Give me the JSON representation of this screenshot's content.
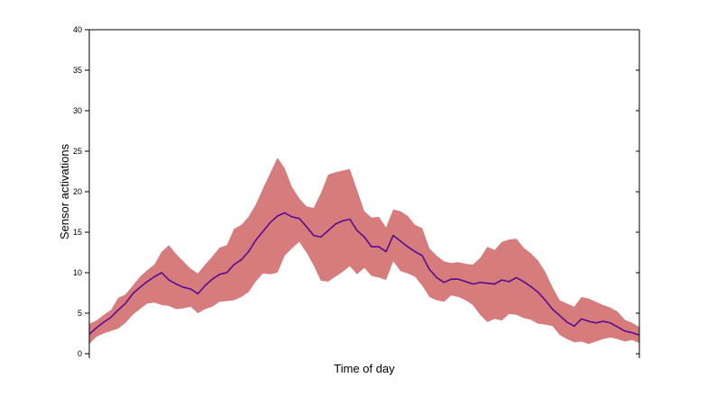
{
  "chart_data": {
    "type": "area",
    "xlabel": "Time of day",
    "ylabel": "Sensor activations",
    "ylim": [
      0,
      40
    ],
    "yticks": [
      0,
      5,
      10,
      15,
      20,
      25,
      30,
      35,
      40
    ],
    "ytick_labels": [
      "0",
      "5",
      "10",
      "15",
      "20",
      "25",
      "30",
      "35",
      "40"
    ],
    "grid": false,
    "colors": {
      "band": "#d67c7c",
      "line": "#5a0a8c",
      "axis": "#000000"
    },
    "series": [
      {
        "mean": [
          2.4,
          3.2,
          3.9,
          4.5,
          5.4,
          6.2,
          7.4,
          8.2,
          8.9,
          9.5,
          10.0,
          9.1,
          8.6,
          8.2,
          8.0,
          7.4,
          8.4,
          9.2,
          9.8,
          10.0,
          11.0,
          11.6,
          12.6,
          14.0,
          15.1,
          16.2,
          17.0,
          17.4,
          16.9,
          16.7,
          15.7,
          14.6,
          14.4,
          15.2,
          16.0,
          16.4,
          16.6,
          15.2,
          14.4,
          13.2,
          13.2,
          12.6,
          14.6,
          13.9,
          13.2,
          12.6,
          12.1,
          10.4,
          9.4,
          8.8,
          9.2,
          9.2,
          8.9,
          8.6,
          8.8,
          8.7,
          8.6,
          9.1,
          8.9,
          9.4,
          8.9,
          8.3,
          7.6,
          6.6,
          5.5,
          4.7,
          3.9,
          3.4,
          4.3,
          4.0,
          3.8,
          4.0,
          3.8,
          3.3,
          2.8,
          2.6,
          2.3
        ],
        "upper": [
          3.7,
          4.1,
          4.8,
          5.4,
          6.9,
          7.3,
          8.4,
          9.5,
          10.3,
          11.0,
          12.6,
          13.4,
          12.3,
          11.4,
          10.5,
          9.9,
          11.0,
          12.0,
          13.1,
          13.4,
          15.4,
          15.9,
          16.9,
          18.4,
          20.4,
          22.3,
          24.2,
          22.9,
          20.6,
          19.2,
          18.2,
          18.0,
          19.8,
          22.1,
          22.4,
          22.6,
          22.8,
          20.2,
          17.6,
          16.8,
          16.9,
          15.6,
          17.8,
          17.6,
          17.0,
          15.9,
          15.5,
          13.0,
          12.1,
          11.4,
          11.2,
          11.3,
          11.1,
          11.0,
          11.8,
          13.2,
          12.8,
          13.8,
          14.1,
          14.2,
          13.1,
          12.4,
          11.5,
          10.1,
          8.2,
          6.6,
          6.2,
          5.8,
          7.0,
          6.8,
          6.4,
          6.0,
          5.7,
          5.2,
          4.2,
          3.8,
          3.3
        ],
        "lower": [
          1.2,
          2.1,
          2.5,
          2.8,
          3.1,
          3.8,
          4.8,
          5.5,
          6.2,
          6.3,
          6.0,
          5.9,
          5.5,
          5.6,
          5.8,
          5.0,
          5.5,
          5.8,
          6.4,
          6.5,
          6.6,
          7.0,
          7.6,
          8.9,
          9.9,
          9.8,
          10.0,
          12.1,
          13.0,
          13.8,
          12.5,
          10.9,
          9.0,
          8.9,
          9.5,
          10.1,
          10.8,
          9.8,
          10.6,
          9.6,
          9.4,
          9.1,
          11.4,
          10.2,
          9.9,
          9.5,
          8.4,
          7.0,
          6.6,
          6.4,
          7.2,
          7.0,
          6.6,
          6.0,
          4.8,
          3.9,
          4.3,
          4.1,
          4.9,
          4.8,
          4.4,
          4.2,
          3.7,
          3.6,
          3.4,
          2.3,
          1.8,
          1.4,
          1.5,
          1.2,
          1.5,
          1.8,
          2.0,
          1.8,
          1.5,
          1.7,
          1.3
        ]
      }
    ]
  }
}
